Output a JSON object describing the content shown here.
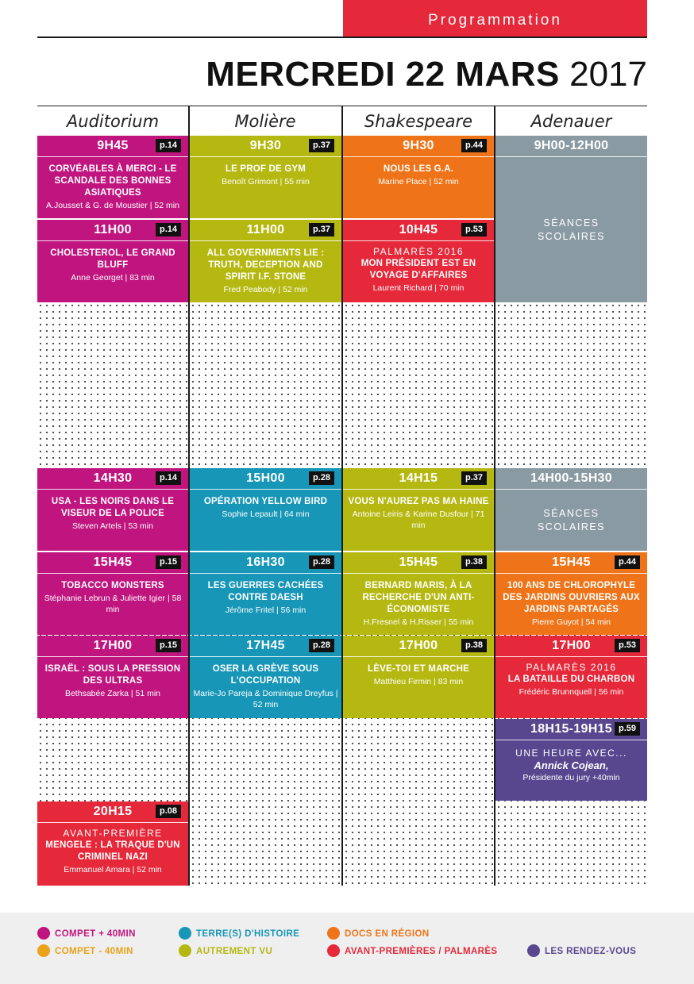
{
  "header": {
    "section": "Programmation",
    "day": "MERCREDI 22 MARS",
    "year": "2017"
  },
  "colors": {
    "compet_plus": "#c0157f",
    "compet_moins": "#e9a21a",
    "terres": "#1796b7",
    "autrement": "#b5b811",
    "docs": "#ef7419",
    "avant": "#e5283a",
    "rdv": "#58478f",
    "scolaires": "#8a9aa3"
  },
  "rooms": [
    "Auditorium",
    "Molière",
    "Shakespeare",
    "Adenauer"
  ],
  "sessions": {
    "aud1": {
      "time": "9H45",
      "page": "p.14",
      "film": "CORVÉABLES À MERCI - LE SCANDALE DES BONNES ASIATIQUES",
      "credit": "A.Jousset & G. de Moustier | 52 min"
    },
    "aud2": {
      "time": "11H00",
      "page": "p.14",
      "film": "CHOLESTEROL, LE GRAND BLUFF",
      "credit": "Anne Georget | 83 min"
    },
    "aud3": {
      "time": "14H30",
      "page": "p.14",
      "film": "USA - LES NOIRS DANS LE VISEUR DE LA POLICE",
      "credit": "Steven Artels | 53 min"
    },
    "aud4": {
      "time": "15H45",
      "page": "p.15",
      "film": "TOBACCO MONSTERS",
      "credit": "Stéphanie Lebrun & Juliette Igier | 58 min"
    },
    "aud5": {
      "time": "17H00",
      "page": "p.15",
      "film": "ISRAËL : SOUS LA PRESSION DES ULTRAS",
      "credit": "Bethsabée Zarka | 51 min"
    },
    "aud6": {
      "time": "20H15",
      "page": "p.08",
      "pre": "AVANT-PREMIÈRE",
      "film": "MENGELE : LA TRAQUE D'UN CRIMINEL NAZI",
      "credit": "Emmanuel Amara | 52 min"
    },
    "mol1": {
      "time": "9H30",
      "page": "p.37",
      "film": "LE PROF DE GYM",
      "credit": "Benoît Grimont | 55 min"
    },
    "mol2": {
      "time": "11H00",
      "page": "p.37",
      "film": "ALL GOVERNMENTS LIE : TRUTH, DECEPTION AND SPIRIT I.F. STONE",
      "credit": "Fred Peabody | 52 min"
    },
    "mol3": {
      "time": "15H00",
      "page": "p.28",
      "film": "OPÉRATION YELLOW BIRD",
      "credit": "Sophie Lepault | 64 min"
    },
    "mol4": {
      "time": "16H30",
      "page": "p.28",
      "film": "LES GUERRES CACHÉES CONTRE DAESH",
      "credit": "Jérôme Fritel | 56 min"
    },
    "mol5": {
      "time": "17H45",
      "page": "p.28",
      "film": "OSER LA GRÈVE SOUS L'OCCUPATION",
      "credit": "Marie-Jo Pareja & Dominique Dreyfus | 52 min"
    },
    "sha1": {
      "time": "9H30",
      "page": "p.44",
      "film": "NOUS LES G.A.",
      "credit": "Marine Place | 52 min"
    },
    "sha2": {
      "time": "10H45",
      "page": "p.53",
      "pre": "PALMARÈS 2016",
      "film": "MON PRÉSIDENT EST EN VOYAGE D'AFFAIRES",
      "credit": "Laurent Richard | 70 min"
    },
    "sha3": {
      "time": "14H15",
      "page": "p.37",
      "film": "VOUS N'AUREZ PAS MA HAINE",
      "credit": "Antoine Leiris & Karine Dusfour | 71 min"
    },
    "sha4": {
      "time": "15H45",
      "page": "p.38",
      "film": "BERNARD MARIS, À LA RECHERCHE D'UN ANTI-ÉCONOMISTE",
      "credit": "H.Fresnel & H.Risser | 55 min"
    },
    "sha5": {
      "time": "17H00",
      "page": "p.38",
      "film": "LÈVE-TOI ET MARCHE",
      "credit": "Matthieu Firmin | 83 min"
    },
    "ade1": {
      "time": "9H00-12H00",
      "label": "SÉANCES SCOLAIRES"
    },
    "ade2": {
      "time": "14H00-15H30",
      "label": "SÉANCES SCOLAIRES"
    },
    "ade3": {
      "time": "15H45",
      "page": "p.44",
      "film": "100 ANS DE CHLOROPHYLE DES JARDINS OUVRIERS AUX JARDINS PARTAGÉS",
      "credit": "Pierre Guyot | 54 min"
    },
    "ade4": {
      "time": "17H00",
      "page": "p.53",
      "pre": "PALMARÈS 2016",
      "film": "LA BATAILLE DU CHARBON",
      "credit": "Frédéric Brunnquell | 56 min"
    },
    "ade5": {
      "time": "18H15-19H15",
      "page": "p.59",
      "pre": "UNE HEURE AVEC...",
      "guest": "Annick Cojean,",
      "role": "Présidente du jury +40min"
    }
  },
  "legend": [
    {
      "label": "COMPET + 40MIN",
      "color": "#c0157f"
    },
    {
      "label": "COMPET - 40MIN",
      "color": "#e9a21a"
    },
    {
      "label": "TERRE(S) D'HISTOIRE",
      "color": "#1796b7"
    },
    {
      "label": "AUTREMENT VU",
      "color": "#b5b811"
    },
    {
      "label": "DOCS EN RÉGION",
      "color": "#ef7419"
    },
    {
      "label": "AVANT-PREMIÈRES / PALMARÈS",
      "color": "#e5283a"
    },
    {
      "label": "LES RENDEZ-VOUS",
      "color": "#58478f"
    }
  ]
}
